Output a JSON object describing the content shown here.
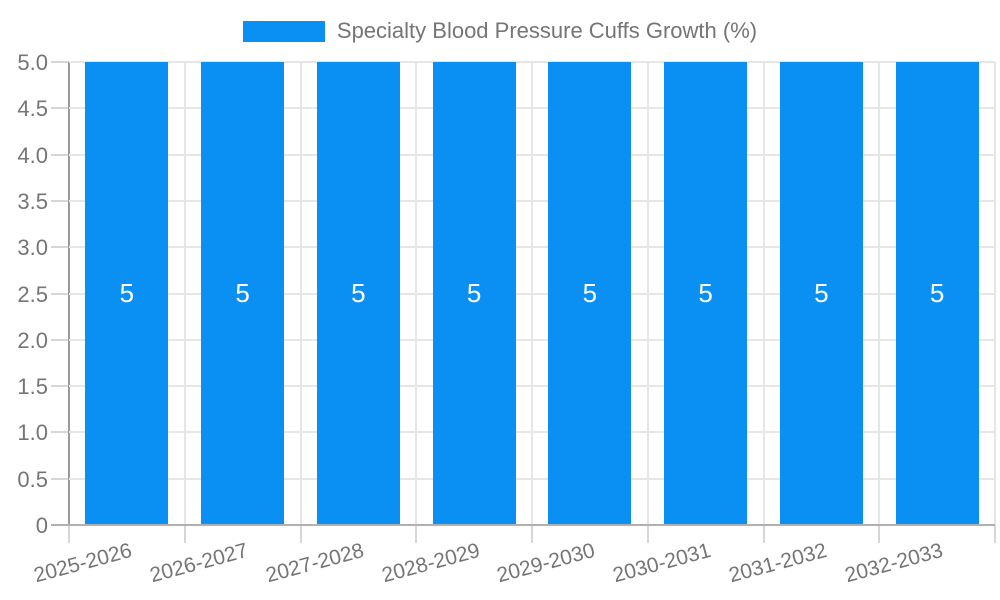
{
  "legend": {
    "label": "Specialty Blood Pressure Cuffs Growth (%)"
  },
  "chart_data": {
    "type": "bar",
    "title": "Specialty Blood Pressure Cuffs Growth (%)",
    "categories": [
      "2025-2026",
      "2026-2027",
      "2027-2028",
      "2028-2029",
      "2029-2030",
      "2030-2031",
      "2031-2032",
      "2032-2033"
    ],
    "series": [
      {
        "name": "Specialty Blood Pressure Cuffs Growth (%)",
        "values": [
          5,
          5,
          5,
          5,
          5,
          5,
          5,
          5
        ]
      }
    ],
    "bar_value_labels": [
      "5",
      "5",
      "5",
      "5",
      "5",
      "5",
      "5",
      "5"
    ],
    "xlabel": "",
    "ylabel": "",
    "ylim": [
      0,
      5
    ],
    "ytick_values": [
      0,
      0.5,
      1,
      1.5,
      2,
      2.5,
      3,
      3.5,
      4,
      4.5,
      5
    ],
    "ytick_labels": [
      "0",
      "0.5",
      "1.0",
      "1.5",
      "2.0",
      "2.5",
      "3.0",
      "3.5",
      "4.0",
      "4.5",
      "5.0"
    ],
    "x_label_rotation_deg": -15,
    "grid": true,
    "legend_position": "top-center",
    "colors": {
      "bar": "#0a90f2",
      "bar_label_text": "#ffffff",
      "axis_text": "#757575",
      "gridline": "#e6e6e6",
      "tick": "#d6d6d6",
      "y_axis_line": "#9b9b9b",
      "baseline": "#b0b0b0",
      "background": "#ffffff"
    }
  }
}
